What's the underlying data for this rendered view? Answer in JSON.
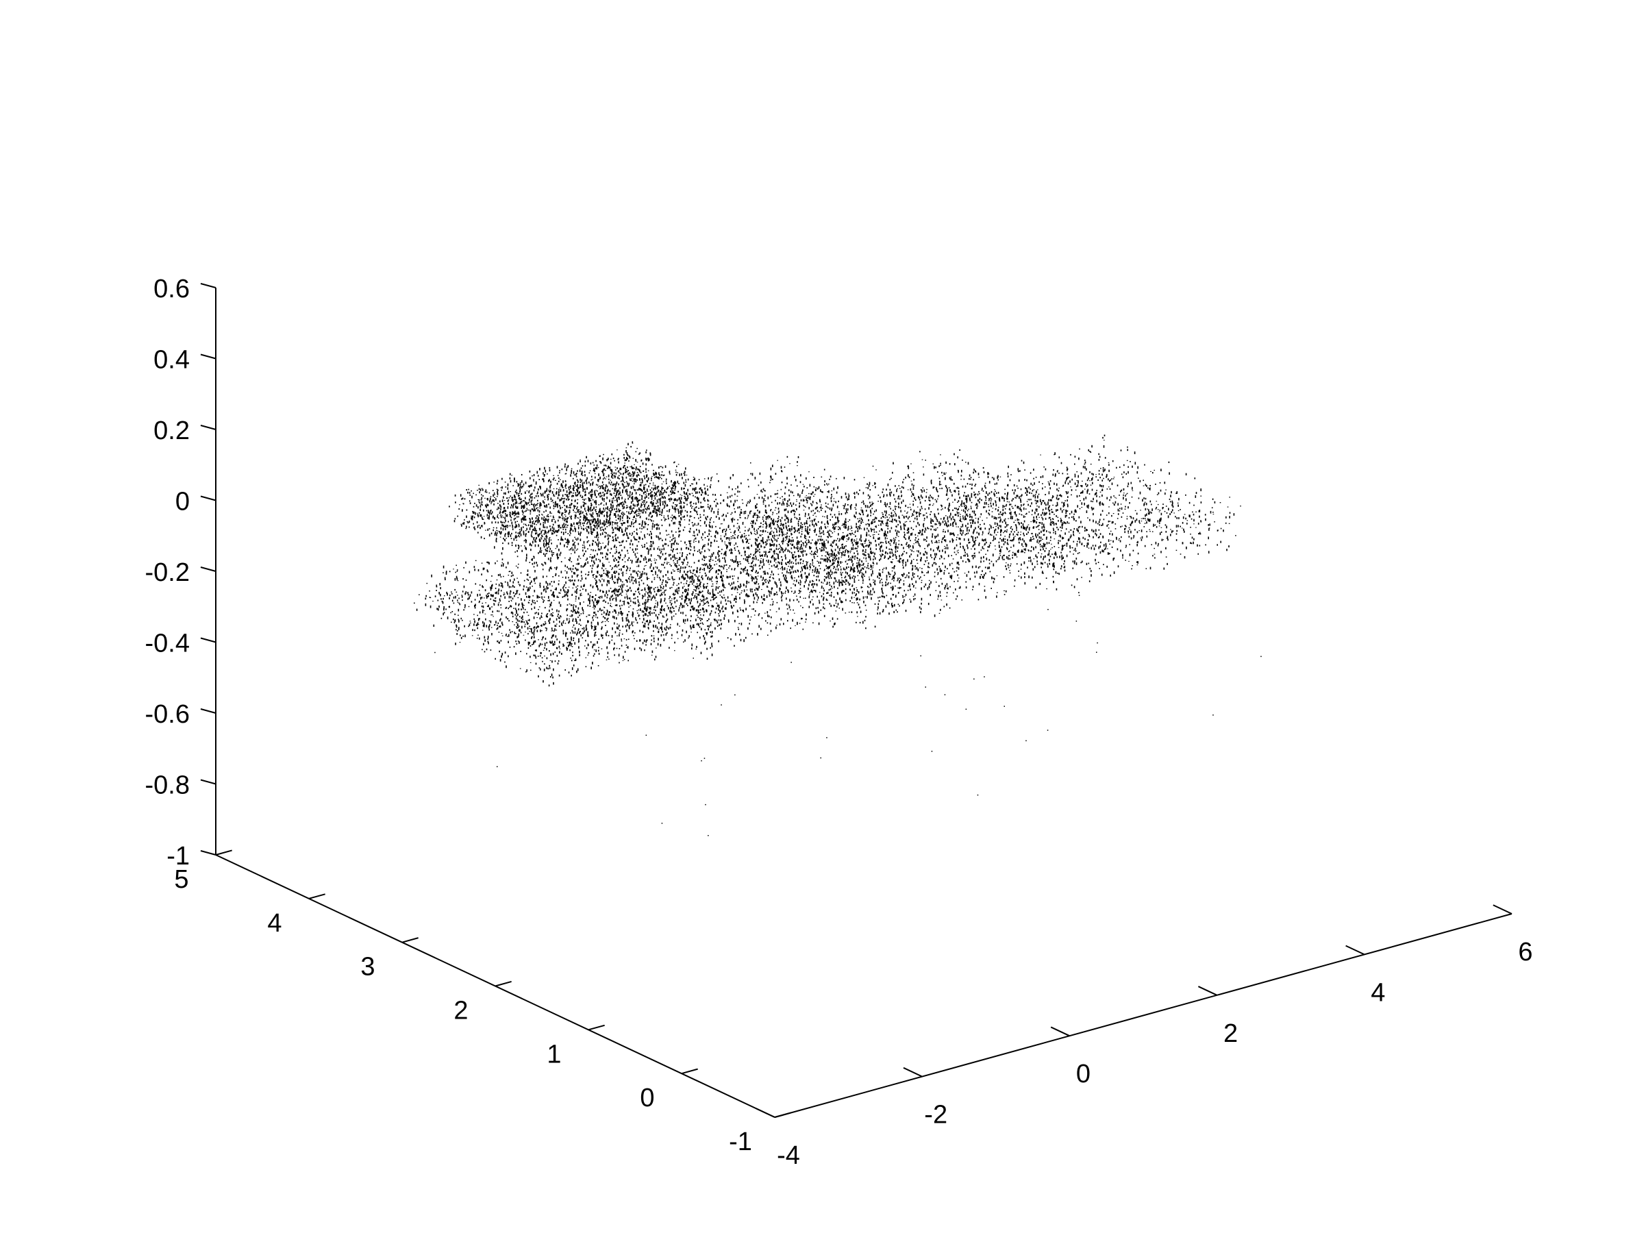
{
  "chart_data": {
    "type": "scatter",
    "projection": "3d",
    "title": "",
    "xlabel": "",
    "ylabel": "",
    "zlabel": "",
    "grid": false,
    "x_axis": {
      "range": [
        -4,
        6
      ],
      "ticks": [
        -4,
        -2,
        0,
        2,
        4,
        6
      ],
      "tick_labels": [
        "-4",
        "-2",
        "0",
        "2",
        "4",
        "6"
      ]
    },
    "y_axis": {
      "range": [
        -1,
        5
      ],
      "ticks": [
        -1,
        0,
        1,
        2,
        3,
        4,
        5
      ],
      "tick_labels": [
        "-1",
        "0",
        "1",
        "2",
        "3",
        "4",
        "5"
      ]
    },
    "z_axis": {
      "range": [
        -1,
        0.6
      ],
      "ticks": [
        -1,
        -0.8,
        -0.6,
        -0.4,
        -0.2,
        0,
        0.2,
        0.4,
        0.6
      ],
      "tick_labels": [
        "-1",
        "-0.8",
        "-0.6",
        "-0.4",
        "-0.2",
        "0",
        "0.2",
        "0.4",
        "0.6"
      ]
    },
    "point_color": "#000000",
    "clusters": [
      {
        "x": [
          -1.5,
          1.0
        ],
        "y": [
          3.5,
          4.5
        ],
        "z": [
          -0.15,
          -0.05
        ],
        "density": 0.9
      },
      {
        "x": [
          -0.5,
          2.5
        ],
        "y": [
          2.5,
          4.0
        ],
        "z": [
          -0.35,
          -0.1
        ],
        "density": 1.0
      },
      {
        "x": [
          1.0,
          4.0
        ],
        "y": [
          2.0,
          3.5
        ],
        "z": [
          -0.3,
          -0.1
        ],
        "density": 0.8
      },
      {
        "x": [
          3.0,
          5.5
        ],
        "y": [
          1.5,
          3.0
        ],
        "z": [
          -0.25,
          -0.1
        ],
        "density": 0.5
      },
      {
        "x": [
          -2.0,
          0.5
        ],
        "y": [
          3.0,
          4.5
        ],
        "z": [
          -0.4,
          -0.25
        ],
        "density": 0.7
      }
    ]
  }
}
